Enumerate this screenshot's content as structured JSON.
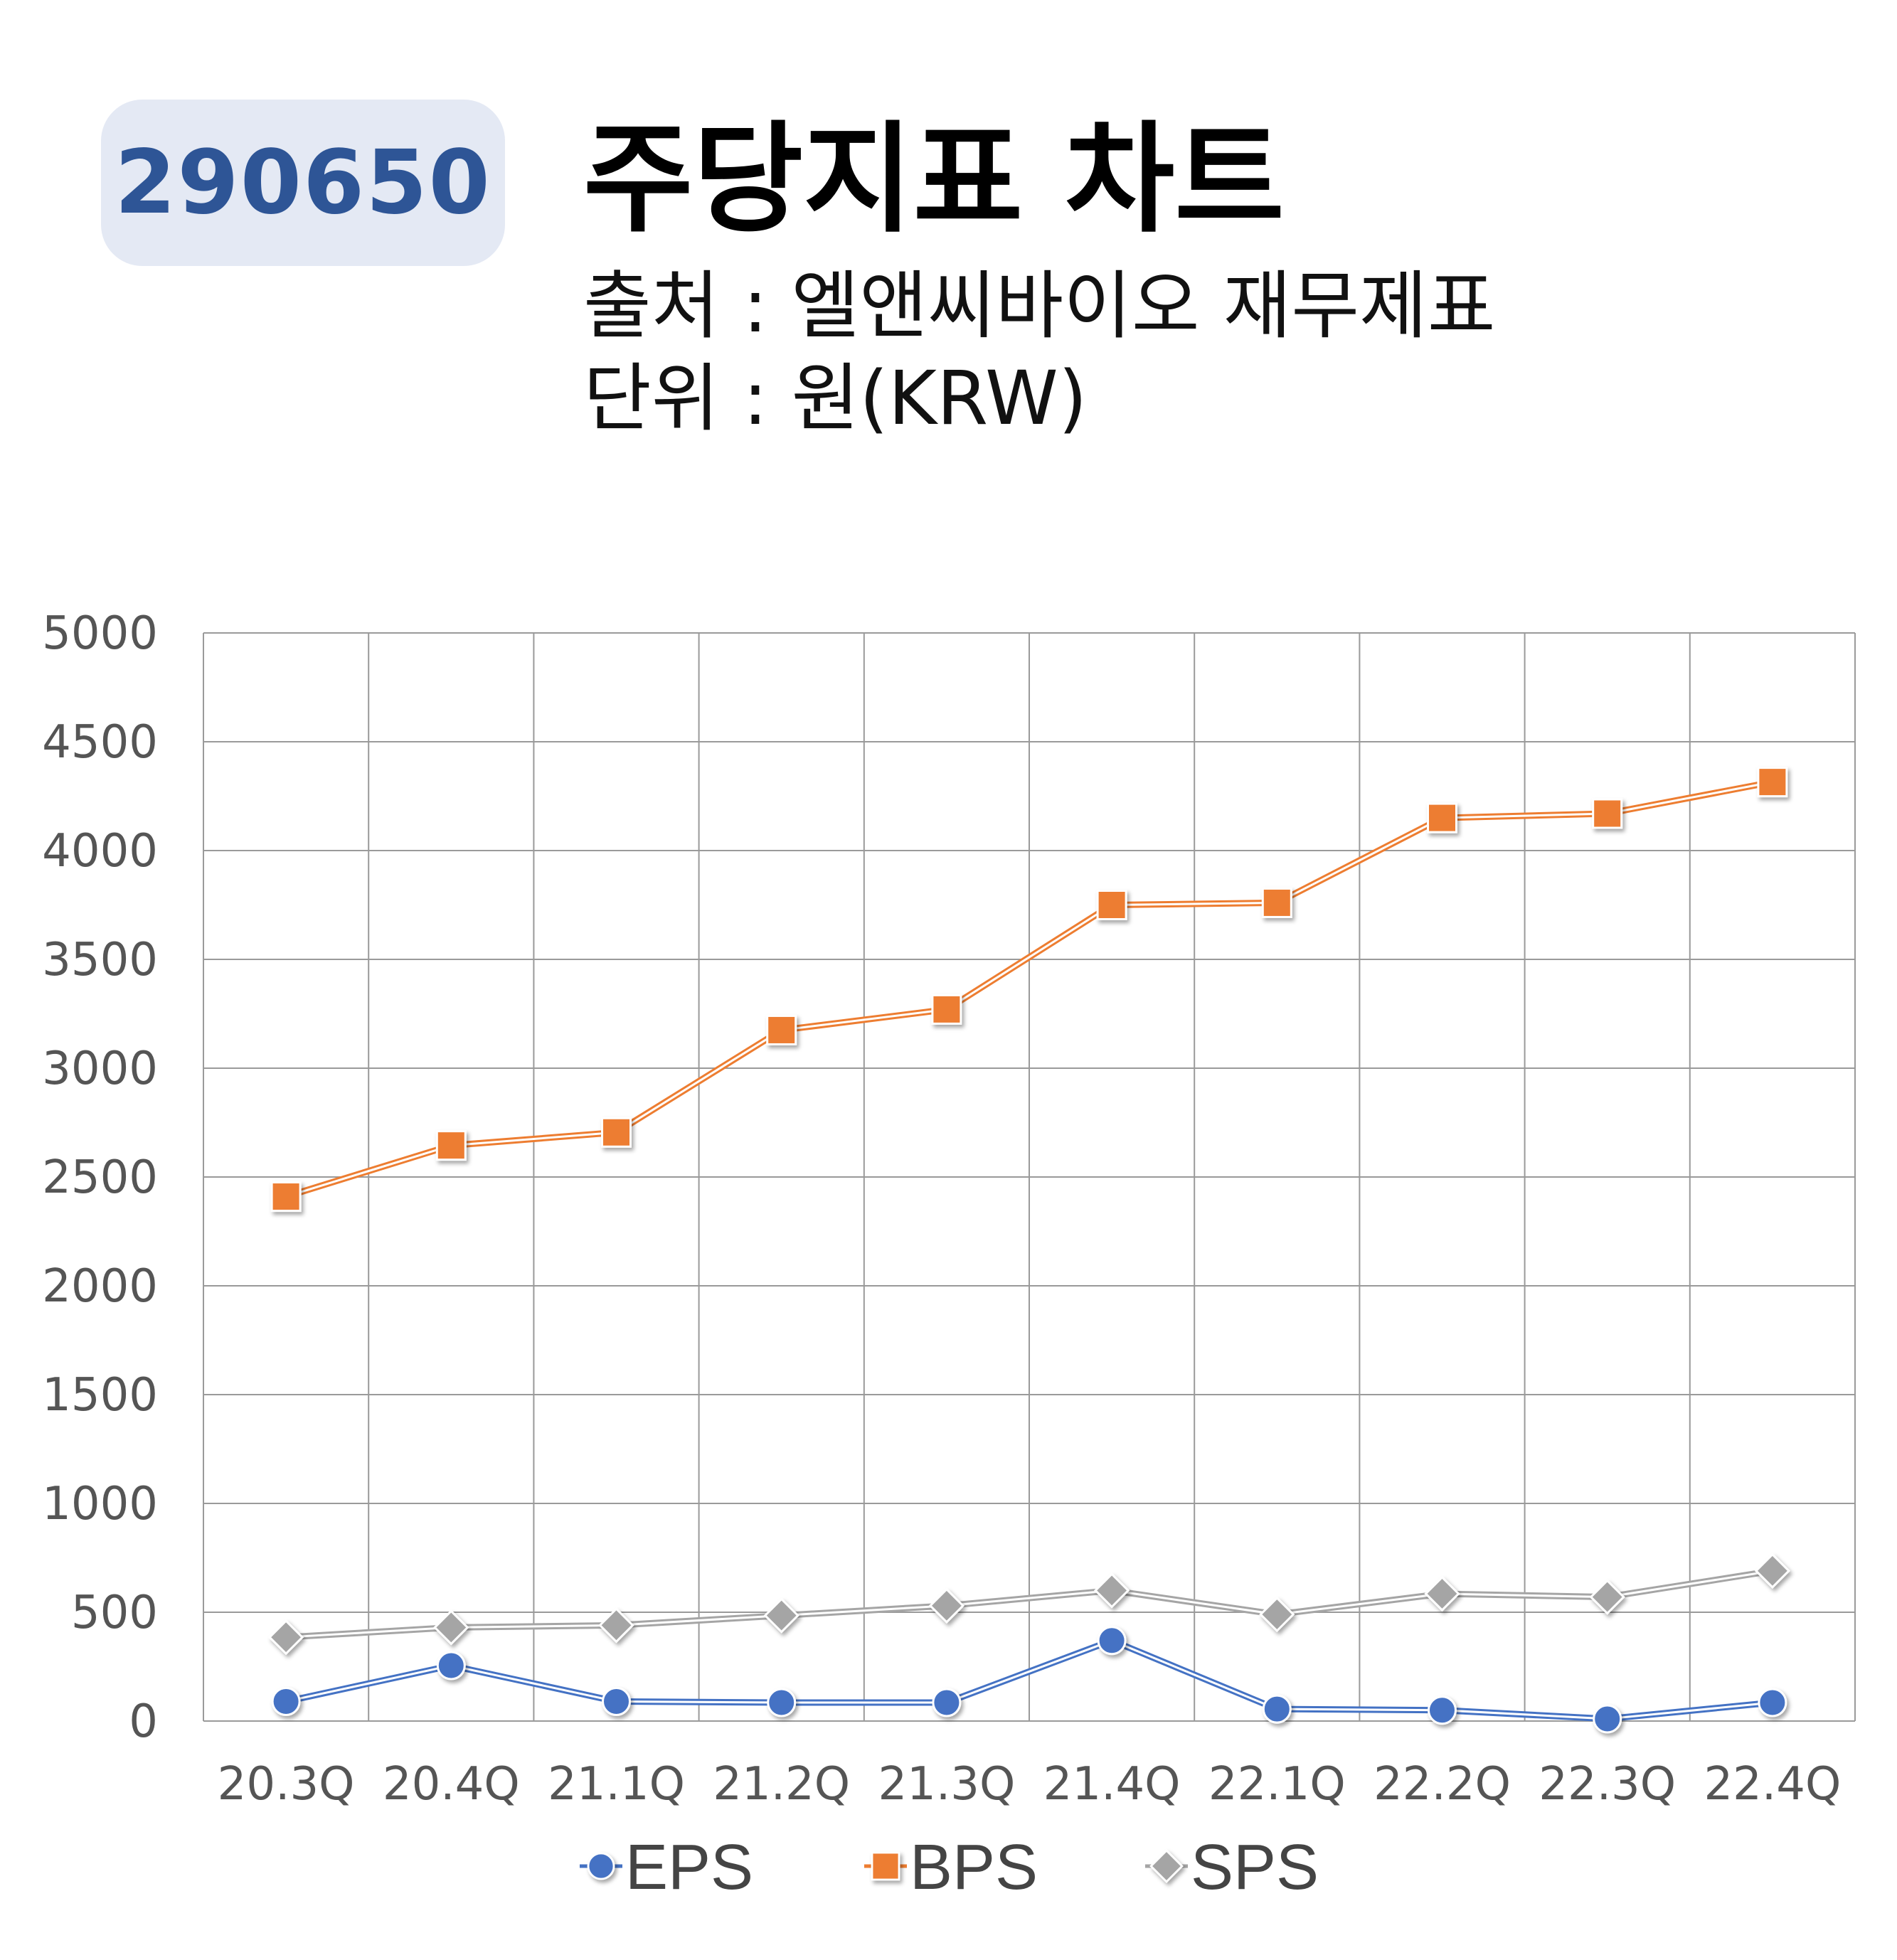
{
  "header": {
    "ticker": "290650",
    "title": "주당지표 차트",
    "source": "출처 : 엘앤씨바이오 재무제표",
    "unit": "단위 : 원(KRW)"
  },
  "chart_data": {
    "type": "line",
    "categories": [
      "20.3Q",
      "20.4Q",
      "21.1Q",
      "21.2Q",
      "21.3Q",
      "21.4Q",
      "22.1Q",
      "22.2Q",
      "22.3Q",
      "22.4Q"
    ],
    "ylim": [
      0,
      5000
    ],
    "yticks": [
      0,
      500,
      1000,
      1500,
      2000,
      2500,
      3000,
      3500,
      4000,
      4500,
      5000
    ],
    "grid": true,
    "legend_position": "bottom",
    "series": [
      {
        "name": "EPS",
        "color": "#4472c4",
        "marker": "circle",
        "values": [
          90,
          255,
          90,
          85,
          85,
          370,
          55,
          50,
          10,
          85
        ]
      },
      {
        "name": "BPS",
        "color": "#ed7d31",
        "marker": "square",
        "values": [
          2410,
          2645,
          2705,
          3175,
          3270,
          3750,
          3760,
          4150,
          4170,
          4315
        ]
      },
      {
        "name": "SPS",
        "color": "#a5a5a5",
        "marker": "diamond",
        "values": [
          385,
          430,
          440,
          485,
          530,
          600,
          490,
          585,
          570,
          690
        ]
      }
    ]
  }
}
